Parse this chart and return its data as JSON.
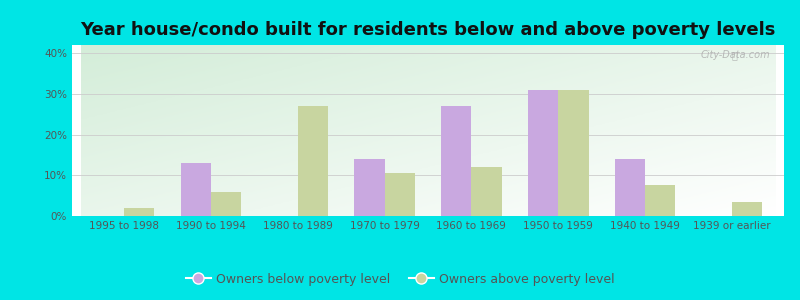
{
  "title": "Year house/condo built for residents below and above poverty levels",
  "categories": [
    "1995 to 1998",
    "1990 to 1994",
    "1980 to 1989",
    "1970 to 1979",
    "1960 to 1969",
    "1950 to 1959",
    "1940 to 1949",
    "1939 or earlier"
  ],
  "below_poverty": [
    0,
    13,
    0,
    14,
    27,
    31,
    14,
    0
  ],
  "above_poverty": [
    2,
    6,
    27,
    10.5,
    12,
    31,
    7.5,
    3.5
  ],
  "below_color": "#c9a8e0",
  "above_color": "#c8d5a0",
  "ylim": [
    0,
    42
  ],
  "yticks": [
    0,
    10,
    20,
    30,
    40
  ],
  "ytick_labels": [
    "0%",
    "10%",
    "20%",
    "30%",
    "40%"
  ],
  "legend_below": "Owners below poverty level",
  "legend_above": "Owners above poverty level",
  "outer_bg": "#00e5e5",
  "title_fontsize": 13,
  "tick_fontsize": 7.5,
  "legend_fontsize": 9,
  "bar_width": 0.35,
  "grid_color": "#cccccc"
}
